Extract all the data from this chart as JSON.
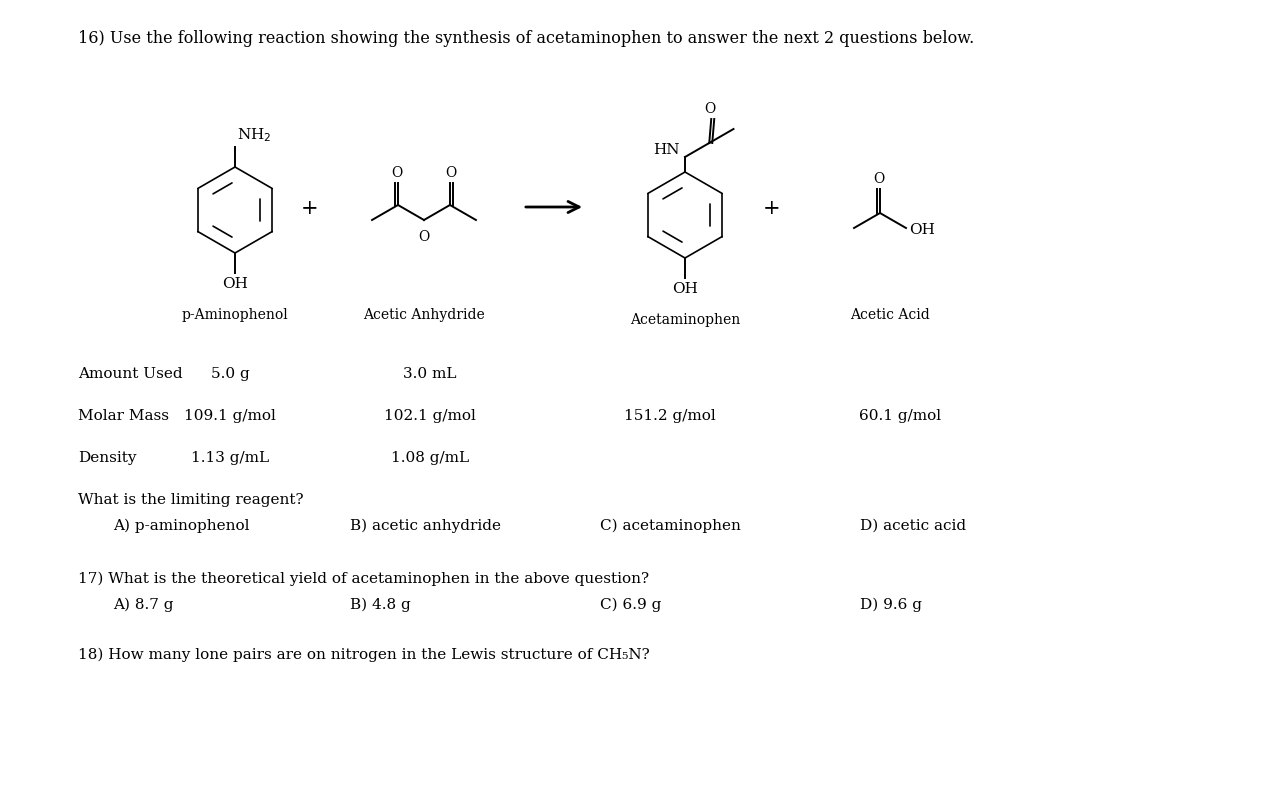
{
  "title_line": "16) Use the following reaction showing the synthesis of acetaminophen to answer the next 2 questions below.",
  "q16_label": "What is the limiting reagent?",
  "q16_A": "A) p-aminophenol",
  "q16_B": "B) acetic anhydride",
  "q16_C": "C) acetaminophen",
  "q16_D": "D) acetic acid",
  "q17_label": "17) What is the theoretical yield of acetaminophen in the above question?",
  "q17_A": "A) 8.7 g",
  "q17_B": "B) 4.8 g",
  "q17_C": "C) 6.9 g",
  "q17_D": "D) 9.6 g",
  "q18_label": "18) How many lone pairs are on nitrogen in the Lewis structure of CH₅N?",
  "row_amount": "Amount Used",
  "row_molar": "Molar Mass",
  "row_density": "Density",
  "col1_name": "p-Aminophenol",
  "col2_name": "Acetic Anhydride",
  "col3_name": "Acetaminophen",
  "col4_name": "Acetic Acid",
  "amount_col1": "5.0 g",
  "amount_col2": "3.0 mL",
  "molar_col1": "109.1 g/mol",
  "molar_col2": "102.1 g/mol",
  "molar_col3": "151.2 g/mol",
  "molar_col4": "60.1 g/mol",
  "density_col1": "1.13 g/mL",
  "density_col2": "1.08 g/mL",
  "bg_color": "#ffffff",
  "text_color": "#000000",
  "font_size_title": 11.5,
  "font_size_body": 11,
  "font_size_chem": 10,
  "font_size_label": 10
}
